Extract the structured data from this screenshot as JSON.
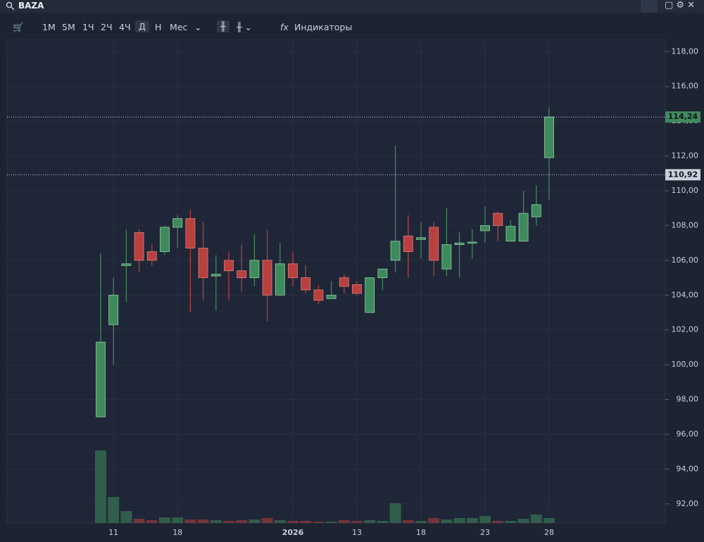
{
  "toolbar": {
    "ticker": "BAZA",
    "intervals": [
      "1М",
      "5М",
      "1Ч",
      "2Ч",
      "4Ч",
      "Д",
      "Н",
      "Мес"
    ],
    "indicators": "Индикаторы"
  },
  "chart_data": {
    "type": "candlestick",
    "categories": [
      null,
      "11",
      null,
      null,
      null,
      null,
      "18",
      null,
      null,
      null,
      null,
      null,
      null,
      null,
      null,
      "2026",
      null,
      null,
      null,
      null,
      "13",
      null,
      null,
      null,
      null,
      "18",
      null,
      null,
      null,
      null,
      "23",
      null,
      null,
      null,
      null,
      "28"
    ],
    "open": [
      97.0,
      102.3,
      105.7,
      107.6,
      106.5,
      106.5,
      107.9,
      108.4,
      106.7,
      105.1,
      106.0,
      105.4,
      105.0,
      106.0,
      104.0,
      105.8,
      105.0,
      104.3,
      103.8,
      105.0,
      104.6,
      103.0,
      105.0,
      106.0,
      107.4,
      107.2,
      107.9,
      105.5,
      106.9,
      107.0,
      107.7,
      108.7,
      107.1,
      107.1,
      108.5,
      111.9
    ],
    "high": [
      106.4,
      105.0,
      107.75,
      107.8,
      106.9,
      108.0,
      108.6,
      108.9,
      108.2,
      106.3,
      106.5,
      106.9,
      107.5,
      107.75,
      107.0,
      106.5,
      105.7,
      104.6,
      104.8,
      105.2,
      104.8,
      105.0,
      105.5,
      112.6,
      108.6,
      108.2,
      108.2,
      109.0,
      107.6,
      107.8,
      109.1,
      108.8,
      108.3,
      110.0,
      110.3,
      114.8
    ],
    "low": [
      97.0,
      100.0,
      103.6,
      105.3,
      105.7,
      106.3,
      106.7,
      103.0,
      103.7,
      103.1,
      103.7,
      104.2,
      104.5,
      102.5,
      104.0,
      104.5,
      104.1,
      103.5,
      103.8,
      104.1,
      104.0,
      103.0,
      104.3,
      105.3,
      105.0,
      106.1,
      105.1,
      105.1,
      105.0,
      106.1,
      107.0,
      107.1,
      107.1,
      107.1,
      108.0,
      109.5
    ],
    "close": [
      101.3,
      104.0,
      105.8,
      106.0,
      106.0,
      107.9,
      108.4,
      106.7,
      105.0,
      105.2,
      105.4,
      105.0,
      106.0,
      104.0,
      105.8,
      105.0,
      104.3,
      103.7,
      104.0,
      104.5,
      104.1,
      105.0,
      105.5,
      107.1,
      106.5,
      107.3,
      106.0,
      106.9,
      107.0,
      107.05,
      108.0,
      108.0,
      107.95,
      108.7,
      109.2,
      114.24
    ],
    "volume": [
      103,
      37,
      17,
      6,
      4,
      8,
      8,
      5,
      5,
      4,
      3,
      4,
      5,
      7,
      4,
      3,
      3,
      2,
      2,
      4,
      3,
      4,
      3,
      28,
      4,
      3,
      7,
      5,
      7,
      7,
      10,
      3,
      3,
      6,
      12,
      7
    ],
    "up_color": "#3f8a5c",
    "down_color": "#b8403e",
    "ylim": [
      90.9,
      118.7
    ],
    "yticks": [
      {
        "value": 118,
        "label": "118,00"
      },
      {
        "value": 116,
        "label": "116,00"
      },
      {
        "value": 114,
        "label": "114,00"
      },
      {
        "value": 112,
        "label": "112,00"
      },
      {
        "value": 110,
        "label": "110,00"
      },
      {
        "value": 108,
        "label": "108,00"
      },
      {
        "value": 106,
        "label": "106,00"
      },
      {
        "value": 104,
        "label": "104,00"
      },
      {
        "value": 102,
        "label": "102,00"
      },
      {
        "value": 100,
        "label": "100,00"
      },
      {
        "value": 98,
        "label": "98,00"
      },
      {
        "value": 96,
        "label": "96,00"
      },
      {
        "value": 94,
        "label": "94,00"
      },
      {
        "value": 92,
        "label": "92,00"
      }
    ],
    "price_lines": [
      {
        "value": 114.24,
        "label": "114,24",
        "color": "#3f8a5c"
      },
      {
        "value": 110.92,
        "label": "110,92",
        "color": "#c9cfdb"
      }
    ],
    "grid": true
  }
}
